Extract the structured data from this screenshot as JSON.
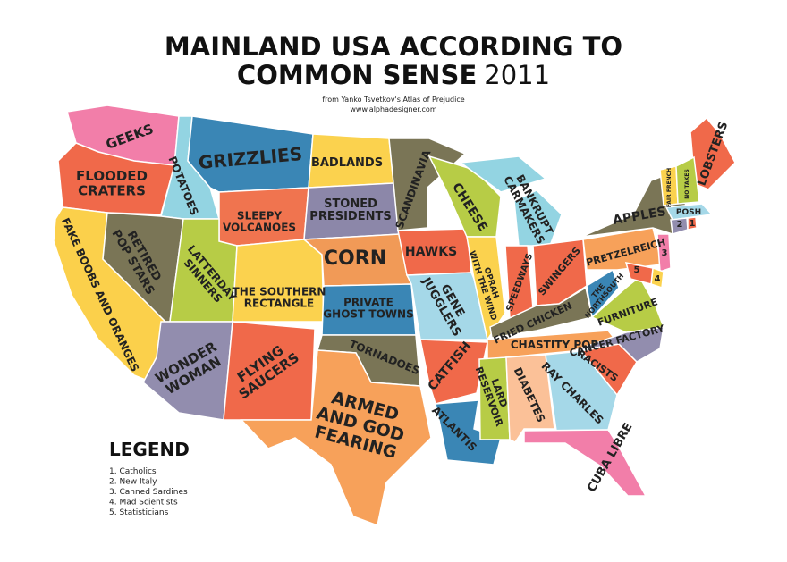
{
  "header": {
    "title": [
      "MAINLAND USA ACCORDING TO",
      "COMMON SENSE"
    ],
    "year": "2011",
    "subtitle": "from Yanko Tsvetkov's Atlas of Prejudice",
    "website": "www.alphadesigner.com"
  },
  "states": [
    {
      "label": [
        "GEEKS"
      ],
      "color": "#f27ea9"
    },
    {
      "label": [
        "FLOODED",
        "CRATERS"
      ],
      "color": "#f0694a"
    },
    {
      "label": [
        "FAKE BOOBS AND ORANGES"
      ],
      "color": "#fbd04b"
    },
    {
      "label": [
        "POTATOES"
      ],
      "color": "#93d4e2"
    },
    {
      "label": [
        "RETIRED",
        "POP STARS"
      ],
      "color": "#7a7556"
    },
    {
      "label": [
        "GRIZZLIES"
      ],
      "color": "#3a86b5"
    },
    {
      "label": [
        "SLEEPY",
        "VOLCANOES"
      ],
      "color": "#f0744f"
    },
    {
      "label": [
        "LATTERDAY",
        "SINNERS"
      ],
      "color": "#b7cc46"
    },
    {
      "label": [
        "THE SOUTHERN",
        "RECTANGLE"
      ],
      "color": "#fbd24e"
    },
    {
      "label": [
        "WONDER",
        "WOMAN"
      ],
      "color": "#928dae"
    },
    {
      "label": [
        "FLYING",
        "SAUCERS"
      ],
      "color": "#f0694a"
    },
    {
      "label": [
        "BADLANDS"
      ],
      "color": "#fbd24e"
    },
    {
      "label": [
        "STONED",
        "PRESIDENTS"
      ],
      "color": "#8c87a9"
    },
    {
      "label": [
        "CORN"
      ],
      "color": "#f19a57"
    },
    {
      "label": [
        "PRIVATE",
        "GHOST TOWNS"
      ],
      "color": "#3a86b5"
    },
    {
      "label": [
        "TORNADOES"
      ],
      "color": "#7a7556"
    },
    {
      "label": [
        "ARMED",
        "AND GOD",
        "FEARING"
      ],
      "color": "#f7a15a"
    },
    {
      "label": [
        "SCANDINAVIA"
      ],
      "color": "#7a7556"
    },
    {
      "label": [
        "HAWKS"
      ],
      "color": "#f0694a"
    },
    {
      "label": [
        "GENE",
        "JUGGLERS"
      ],
      "color": "#a5d8e8"
    },
    {
      "label": [
        "CHEESE"
      ],
      "color": "#b7cc46"
    },
    {
      "label": [
        "OPRAH",
        "WITH THE WIND"
      ],
      "color": "#fbd24e"
    },
    {
      "label": [
        "BANKRUPT",
        "CARMAKERS"
      ],
      "color": "#93d4e2"
    },
    {
      "label": [
        "SPEEDWAYS"
      ],
      "color": "#f0694a"
    },
    {
      "label": [
        "SWINGERS"
      ],
      "color": "#f0694a"
    },
    {
      "label": [
        "FRIED CHICKEN"
      ],
      "color": "#7a7556"
    },
    {
      "label": [
        "THE",
        "NORTHSOUTH"
      ],
      "color": "#3a86b5"
    },
    {
      "label": [
        "CHASTITY POP"
      ],
      "color": "#f7a15a"
    },
    {
      "label": [
        "CATFISH"
      ],
      "color": "#f0694a"
    },
    {
      "label": [
        "ATLANTIS"
      ],
      "color": "#3a86b5"
    },
    {
      "label": [
        "LARD",
        "RESERVOIR"
      ],
      "color": "#b7cc46"
    },
    {
      "label": [
        "DIABETES"
      ],
      "color": "#fbc198"
    },
    {
      "label": [
        "RAY CHARLES"
      ],
      "color": "#a5d8e8"
    },
    {
      "label": [
        "CUBA LIBRE"
      ],
      "color": "#f27ea9"
    },
    {
      "label": [
        "RACISTS"
      ],
      "color": "#f0694a"
    },
    {
      "label": [
        "CANCER FACTORY"
      ],
      "color": "#928dae"
    },
    {
      "label": [
        "FURNITURE"
      ],
      "color": "#b7cc46"
    },
    {
      "label": [
        "PRETZELREICH"
      ],
      "color": "#f7a15a"
    },
    {
      "label": [
        "APPLES"
      ],
      "color": "#7a7556"
    },
    {
      "label": [
        "LOBSTERS"
      ],
      "color": "#f0694a"
    },
    {
      "label": [
        "FAIR FRENCH"
      ],
      "color": "#fbd24e"
    },
    {
      "label": [
        "NO TAKES"
      ],
      "color": "#b7cc46"
    },
    {
      "label": [
        "POSH"
      ],
      "color": "#a5d8e8"
    },
    {
      "label": [
        "2"
      ],
      "color": "#928dae"
    },
    {
      "label": [
        "1"
      ],
      "color": "#f0694a"
    },
    {
      "label": [
        "3"
      ],
      "color": "#f27ea9"
    },
    {
      "label": [
        "4"
      ],
      "color": "#fbd24e"
    },
    {
      "label": [
        "5"
      ],
      "color": "#f0694a"
    }
  ],
  "legend": {
    "title": "LEGEND",
    "items": [
      "1. Catholics",
      "2. New Italy",
      "3. Canned Sardines",
      "4. Mad Scientists",
      "5. Statisticians"
    ]
  }
}
